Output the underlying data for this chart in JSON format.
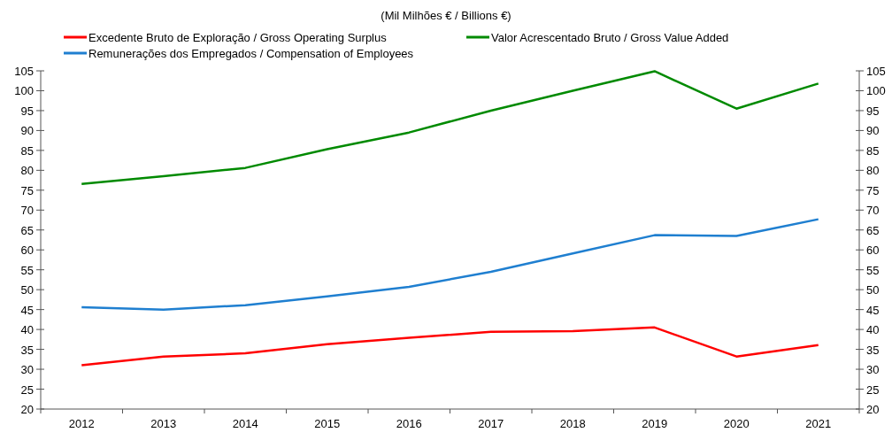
{
  "chart_data": {
    "type": "line",
    "title": "(Mil Milhões € / Billions €)",
    "categories": [
      "2012",
      "2013",
      "2014",
      "2015",
      "2016",
      "2017",
      "2018",
      "2019",
      "2020",
      "2021"
    ],
    "series": [
      {
        "name": "Excedente Bruto de Exploração / Gross Operating Surplus",
        "color": "#ff0000",
        "values": [
          31.0,
          33.2,
          34.0,
          36.3,
          37.9,
          39.4,
          39.6,
          40.5,
          33.2,
          36.1
        ]
      },
      {
        "name": "Valor Acrescentado Bruto / Gross Value Added",
        "color": "#008a00",
        "values": [
          76.6,
          78.5,
          80.6,
          85.3,
          89.5,
          95.0,
          100.0,
          104.9,
          95.5,
          101.8
        ]
      },
      {
        "name": "Remunerações dos Empregados / Compensation of Employees",
        "color": "#1f7fd0",
        "values": [
          45.6,
          45.0,
          46.1,
          48.3,
          50.7,
          54.5,
          59.1,
          63.7,
          63.5,
          67.7
        ]
      }
    ],
    "ylim": [
      20,
      105
    ],
    "yticks": [
      20,
      25,
      30,
      35,
      40,
      45,
      50,
      55,
      60,
      65,
      70,
      75,
      80,
      85,
      90,
      95,
      100,
      105
    ],
    "y2lim": [
      20,
      105
    ],
    "y2ticks": [
      20,
      25,
      30,
      35,
      40,
      45,
      50,
      55,
      60,
      65,
      70,
      75,
      80,
      85,
      90,
      95,
      100,
      105
    ],
    "legend": "top",
    "marker": "none",
    "line_style": "solid"
  }
}
